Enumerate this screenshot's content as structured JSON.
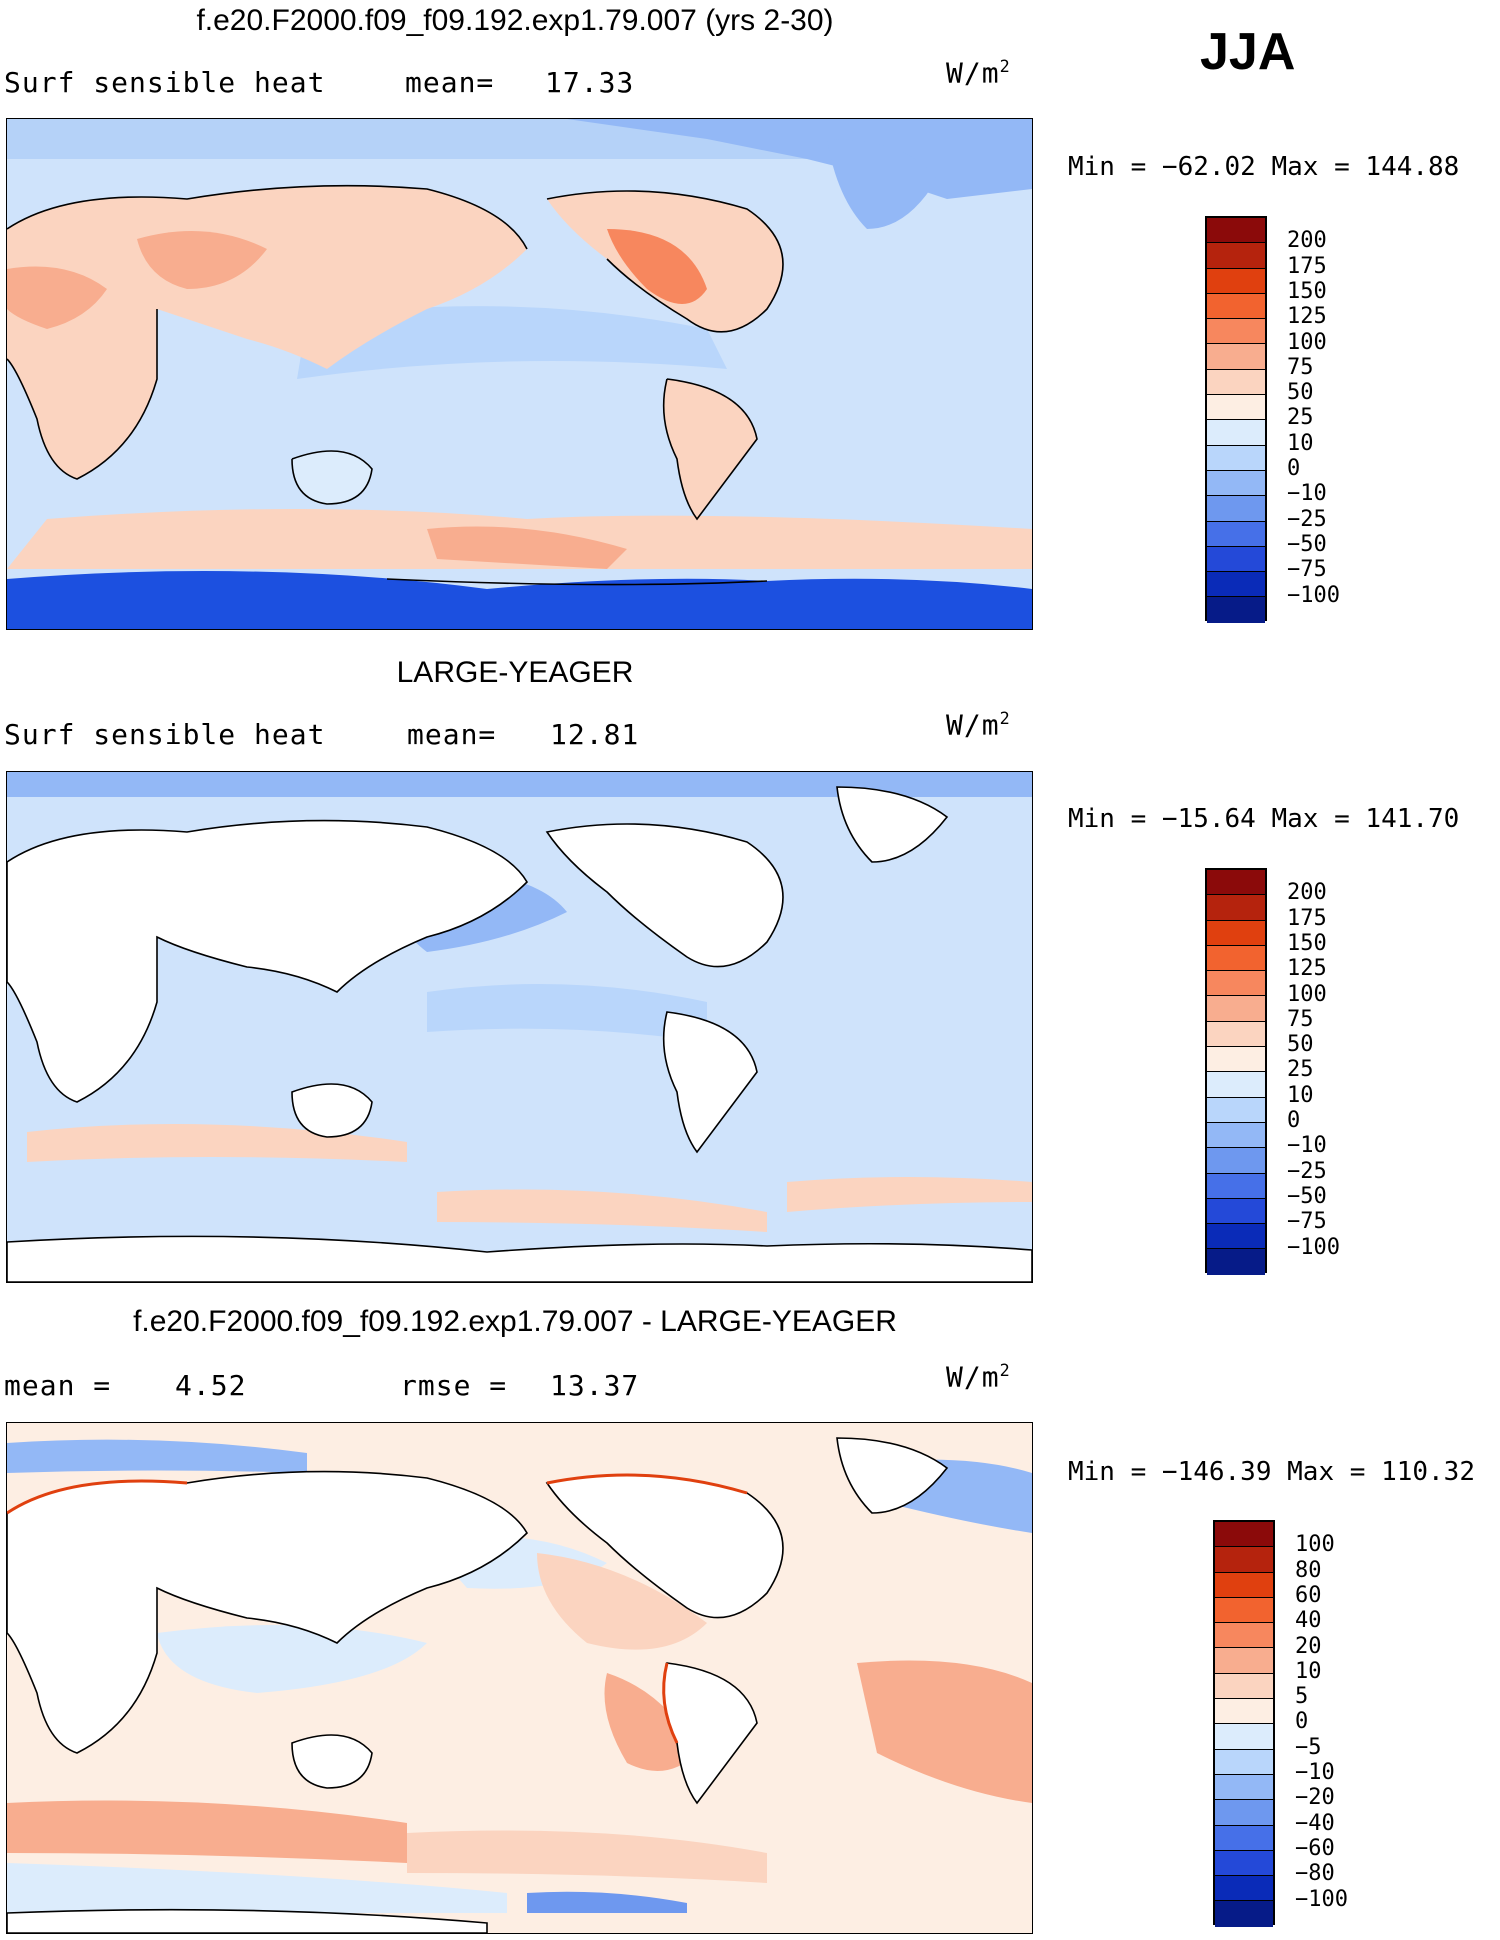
{
  "season": "JJA",
  "panels": [
    {
      "title": "f.e20.F2000.f09_f09.192.exp1.79.007 (yrs 2-30)",
      "left_label": "Surf sensible heat",
      "mid_label": "mean=",
      "mid_value": "17.33",
      "units": "W/m",
      "units_exp": "2",
      "minmax": "Min = −62.02 Max = 144.88",
      "colorbar": {
        "labels": [
          "200",
          "175",
          "150",
          "125",
          "100",
          "75",
          "50",
          "25",
          "10",
          "0",
          "−10",
          "−25",
          "−50",
          "−75",
          "−100"
        ],
        "colors": [
          "#8b0a0a",
          "#b5230d",
          "#e0400f",
          "#f2632f",
          "#f7875e",
          "#f8ad8f",
          "#fbd4c0",
          "#fdeee3",
          "#dcecfc",
          "#b9d6fb",
          "#93b8f6",
          "#6e98ef",
          "#4670e8",
          "#2449d8",
          "#0a2bb8",
          "#061b88"
        ]
      }
    },
    {
      "title": "LARGE-YEAGER",
      "left_label": "Surf sensible heat",
      "mid_label": "mean=",
      "mid_value": "12.81",
      "units": "W/m",
      "units_exp": "2",
      "minmax": "Min = −15.64 Max = 141.70",
      "colorbar": {
        "labels": [
          "200",
          "175",
          "150",
          "125",
          "100",
          "75",
          "50",
          "25",
          "10",
          "0",
          "−10",
          "−25",
          "−50",
          "−75",
          "−100"
        ],
        "colors": [
          "#8b0a0a",
          "#b5230d",
          "#e0400f",
          "#f2632f",
          "#f7875e",
          "#f8ad8f",
          "#fbd4c0",
          "#fdeee3",
          "#dcecfc",
          "#b9d6fb",
          "#93b8f6",
          "#6e98ef",
          "#4670e8",
          "#2449d8",
          "#0a2bb8",
          "#061b88"
        ]
      }
    },
    {
      "title": "f.e20.F2000.f09_f09.192.exp1.79.007 - LARGE-YEAGER",
      "left_label": "mean =",
      "left_value": "4.52",
      "mid_label": "rmse =",
      "mid_value": "13.37",
      "units": "W/m",
      "units_exp": "2",
      "minmax": "Min = −146.39 Max = 110.32",
      "colorbar": {
        "labels": [
          "100",
          "80",
          "60",
          "40",
          "20",
          "10",
          "5",
          "0",
          "−5",
          "−10",
          "−20",
          "−40",
          "−60",
          "−80",
          "−100"
        ],
        "colors": [
          "#8b0a0a",
          "#b5230d",
          "#e0400f",
          "#f2632f",
          "#f7875e",
          "#f8ad8f",
          "#fbd4c0",
          "#fdeee3",
          "#dcecfc",
          "#b9d6fb",
          "#93b8f6",
          "#6e98ef",
          "#4670e8",
          "#2449d8",
          "#0a2bb8",
          "#061b88"
        ]
      }
    }
  ]
}
